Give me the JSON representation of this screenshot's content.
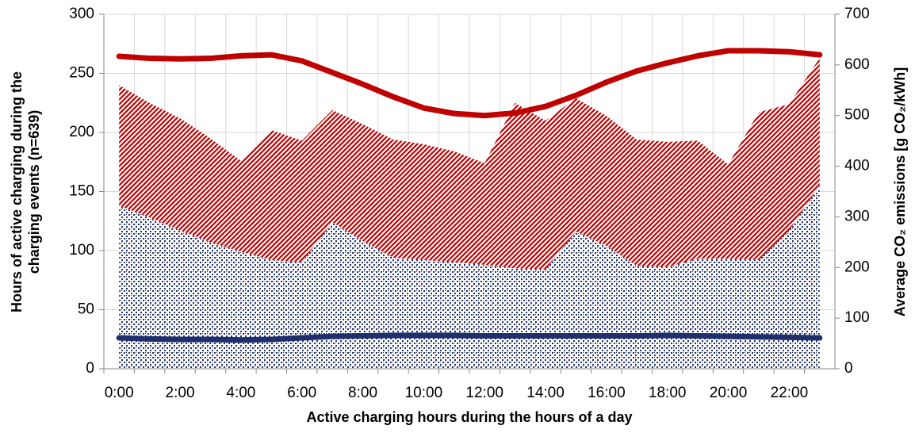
{
  "chart_data": {
    "type": "stacked-area-line",
    "x_label": "Active charging hours during the hours of a day",
    "y_label": [
      "Hours of active charging during the",
      "charging events (n=639)"
    ],
    "y2_label": "Average CO₂ emissions [g CO₂/kWh]",
    "categories": [
      "0:00",
      null,
      "2:00",
      null,
      "4:00",
      null,
      "6:00",
      null,
      "8:00",
      null,
      "10:00",
      null,
      "12:00",
      null,
      "14:00",
      null,
      "16:00",
      null,
      "18:00",
      null,
      "20:00",
      null,
      "22:00",
      null
    ],
    "ylim": [
      0,
      300
    ],
    "yticks": [
      0,
      50,
      100,
      150,
      200,
      250,
      300
    ],
    "y2lim": [
      0,
      700
    ],
    "y2ticks": [
      0,
      100,
      200,
      300,
      400,
      500,
      600,
      700
    ],
    "grid": true,
    "series": [
      {
        "kind": "area",
        "color": "#1f2f6b",
        "values": [
          138,
          128,
          117,
          107,
          99,
          92,
          90,
          124,
          108,
          94,
          92,
          90,
          88,
          85,
          84,
          116,
          104,
          87,
          86,
          93,
          93,
          92,
          117,
          155
        ]
      },
      {
        "kind": "area",
        "color": "#c00000",
        "values": [
          102,
          97,
          95,
          88,
          77,
          110,
          103,
          95,
          99,
          100,
          98,
          94,
          86,
          140,
          126,
          113,
          110,
          107,
          106,
          100,
          80,
          125,
          107,
          108
        ]
      },
      {
        "kind": "line",
        "axis": "y2",
        "color": "#c00000",
        "values": [
          617,
          613,
          612,
          613,
          618,
          620,
          608,
          585,
          562,
          537,
          515,
          504,
          500,
          505,
          518,
          540,
          566,
          588,
          604,
          618,
          628,
          628,
          626,
          620
        ]
      },
      {
        "kind": "line",
        "axis": "y2",
        "color": "#1f2f6b",
        "values": [
          61,
          59,
          58,
          58,
          57,
          58,
          61,
          64,
          65,
          66,
          66,
          66,
          65,
          65,
          65,
          65,
          65,
          65,
          66,
          65,
          64,
          63,
          62,
          61
        ]
      }
    ]
  }
}
